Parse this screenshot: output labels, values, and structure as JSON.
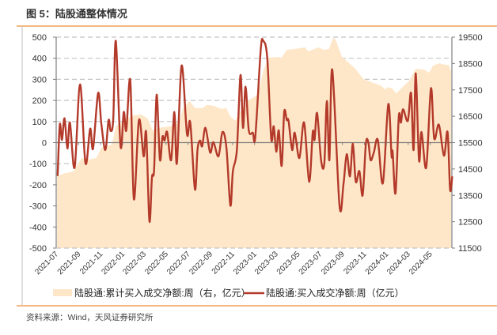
{
  "header": {
    "title": "图 5：陆股通整体情况"
  },
  "footer": {
    "source": "资料来源：Wind，天风证券研究所"
  },
  "colors": {
    "accent_line": "#F0A05A",
    "area": "#FEE7C8",
    "line": "#B33A2A",
    "grid": "#C4C4C4",
    "axis": "#7F7F7F"
  },
  "chart_data": {
    "type": "line+area",
    "title": "",
    "xlim": [
      "2021-07-01",
      "2024-06-30"
    ],
    "x_tick_labels": [
      "2021-07",
      "2021-09",
      "2021-11",
      "2022-01",
      "2022-03",
      "2022-05",
      "2022-07",
      "2022-09",
      "2022-11",
      "2023-01",
      "2023-03",
      "2023-05",
      "2023-07",
      "2023-09",
      "2023-11",
      "2024-01",
      "2024-03",
      "2024-05"
    ],
    "y_left": {
      "lim": [
        -500,
        500
      ],
      "ticks": [
        "500",
        "400",
        "300",
        "200",
        "100",
        "0",
        "-100",
        "-200",
        "-300",
        "-400",
        "-500"
      ]
    },
    "y_right": {
      "lim": [
        11500,
        19500
      ],
      "ticks": [
        "19500",
        "18500",
        "17500",
        "16500",
        "15500",
        "14500",
        "13500",
        "12500",
        "11500"
      ]
    },
    "grid": "horizontal dashed",
    "legend_position": "bottom",
    "series": [
      {
        "name": "陆股通:累计买入成交净额:周（右，亿元）",
        "type": "area",
        "axis": "right",
        "x": [
          "2021-07-05",
          "2021-07-21",
          "2021-08-19",
          "2021-08-26",
          "2021-09-10",
          "2021-10-01",
          "2021-10-20",
          "2021-11-03",
          "2021-12-02",
          "2021-12-13",
          "2022-01-26",
          "2022-02-20",
          "2022-03-11",
          "2022-03-25",
          "2022-04-12",
          "2022-05-15",
          "2022-06-06",
          "2022-06-17",
          "2022-07-05",
          "2022-07-20",
          "2022-08-11",
          "2022-08-21",
          "2022-09-09",
          "2022-09-30",
          "2022-10-15",
          "2022-10-26",
          "2022-11-09",
          "2022-11-20",
          "2022-12-16",
          "2023-01-10",
          "2023-01-25",
          "2023-02-08",
          "2023-03-10",
          "2023-03-17",
          "2023-03-31",
          "2023-04-22",
          "2023-05-21",
          "2023-05-29",
          "2023-06-27",
          "2023-07-11",
          "2023-07-26",
          "2023-08-06",
          "2023-08-13",
          "2023-08-31",
          "2023-09-15",
          "2023-10-07",
          "2023-10-29",
          "2023-11-27",
          "2023-12-15",
          "2023-12-29",
          "2024-01-06",
          "2024-01-17",
          "2024-01-28",
          "2024-02-15",
          "2024-03-04",
          "2024-03-22",
          "2024-04-13",
          "2024-04-28",
          "2024-05-09",
          "2024-05-27",
          "2024-06-10",
          "2024-06-21",
          "2024-06-28"
        ],
        "values": [
          14230,
          14320,
          14410,
          14620,
          14920,
          14860,
          14920,
          15310,
          15430,
          16120,
          16510,
          16570,
          16420,
          15970,
          16060,
          16120,
          16270,
          16810,
          17080,
          16810,
          16810,
          16930,
          16900,
          16780,
          16810,
          16480,
          16330,
          16630,
          17110,
          17310,
          18210,
          18720,
          18750,
          18720,
          19020,
          19050,
          19110,
          18960,
          19110,
          19020,
          19050,
          19470,
          19410,
          18750,
          18570,
          18300,
          17910,
          17760,
          17670,
          17520,
          17610,
          17550,
          17370,
          17610,
          17850,
          18300,
          18270,
          18150,
          18420,
          18510,
          18450,
          18450,
          18210
        ]
      },
      {
        "name": "陆股通:买入成交净额:周（亿元）",
        "type": "line",
        "axis": "left",
        "x": [
          "2021-07-05",
          "2021-07-11",
          "2021-07-17",
          "2021-07-24",
          "2021-08-01",
          "2021-08-08",
          "2021-08-21",
          "2021-09-05",
          "2021-09-20",
          "2021-10-03",
          "2021-10-11",
          "2021-10-25",
          "2021-11-03",
          "2021-11-14",
          "2021-11-23",
          "2021-11-29",
          "2021-12-06",
          "2021-12-13",
          "2021-12-26",
          "2022-01-04",
          "2022-01-11",
          "2022-01-22",
          "2022-02-01",
          "2022-02-15",
          "2022-02-28",
          "2022-03-07",
          "2022-03-16",
          "2022-03-23",
          "2022-03-29",
          "2022-04-05",
          "2022-04-14",
          "2022-04-21",
          "2022-04-27",
          "2022-05-04",
          "2022-05-15",
          "2022-05-24",
          "2022-05-31",
          "2022-06-13",
          "2022-06-28",
          "2022-07-07",
          "2022-07-20",
          "2022-07-27",
          "2022-08-03",
          "2022-08-09",
          "2022-08-18",
          "2022-08-31",
          "2022-09-09",
          "2022-09-23",
          "2022-10-04",
          "2022-10-15",
          "2022-10-26",
          "2022-11-02",
          "2022-11-13",
          "2022-11-23",
          "2022-11-30",
          "2022-12-07",
          "2022-12-16",
          "2022-12-27",
          "2023-01-03",
          "2023-01-18",
          "2023-01-25",
          "2023-02-05",
          "2023-02-16",
          "2023-02-23",
          "2023-03-02",
          "2023-03-09",
          "2023-03-17",
          "2023-03-24",
          "2023-03-31",
          "2023-04-05",
          "2023-04-15",
          "2023-04-22",
          "2023-05-05",
          "2023-05-18",
          "2023-06-01",
          "2023-06-11",
          "2023-06-16",
          "2023-06-23",
          "2023-07-04",
          "2023-07-13",
          "2023-07-20",
          "2023-07-27",
          "2023-08-04",
          "2023-08-24",
          "2023-09-04",
          "2023-09-13",
          "2023-09-22",
          "2023-09-30",
          "2023-10-08",
          "2023-10-18",
          "2023-10-27",
          "2023-11-05",
          "2023-11-12",
          "2023-11-18",
          "2023-11-27",
          "2023-12-08",
          "2023-12-22",
          "2024-01-06",
          "2024-01-15",
          "2024-01-18",
          "2024-01-26",
          "2024-02-04",
          "2024-02-10",
          "2024-02-16",
          "2024-02-29",
          "2024-03-09",
          "2024-03-16",
          "2024-03-22",
          "2024-03-31",
          "2024-04-07",
          "2024-04-20",
          "2024-05-03",
          "2024-05-12",
          "2024-05-25",
          "2024-06-08",
          "2024-06-18",
          "2024-06-25",
          "2024-07-01"
        ],
        "values": [
          -158,
          85,
          13,
          115,
          -28,
          95,
          -118,
          276,
          -98,
          66,
          -28,
          235,
          88,
          -35,
          107,
          55,
          115,
          482,
          -17,
          145,
          58,
          295,
          -268,
          107,
          -65,
          47,
          -372,
          -165,
          -128,
          227,
          -80,
          28,
          10,
          50,
          -83,
          145,
          -98,
          365,
          40,
          95,
          -222,
          -35,
          10,
          -17,
          70,
          -47,
          2,
          -65,
          50,
          -23,
          -298,
          -135,
          -35,
          320,
          70,
          265,
          58,
          47,
          28,
          440,
          482,
          403,
          20,
          77,
          -43,
          58,
          -110,
          145,
          107,
          103,
          -35,
          47,
          -73,
          95,
          -185,
          50,
          13,
          140,
          -83,
          -98,
          197,
          -83,
          346,
          -298,
          -197,
          -55,
          -160,
          -5,
          -185,
          -135,
          -250,
          -5,
          0,
          -83,
          -47,
          13,
          -192,
          182,
          -62,
          -43,
          -240,
          122,
          95,
          158,
          103,
          235,
          -35,
          328,
          -83,
          50,
          -118,
          257,
          20,
          85,
          -62,
          50,
          -222,
          -160
        ]
      }
    ]
  }
}
